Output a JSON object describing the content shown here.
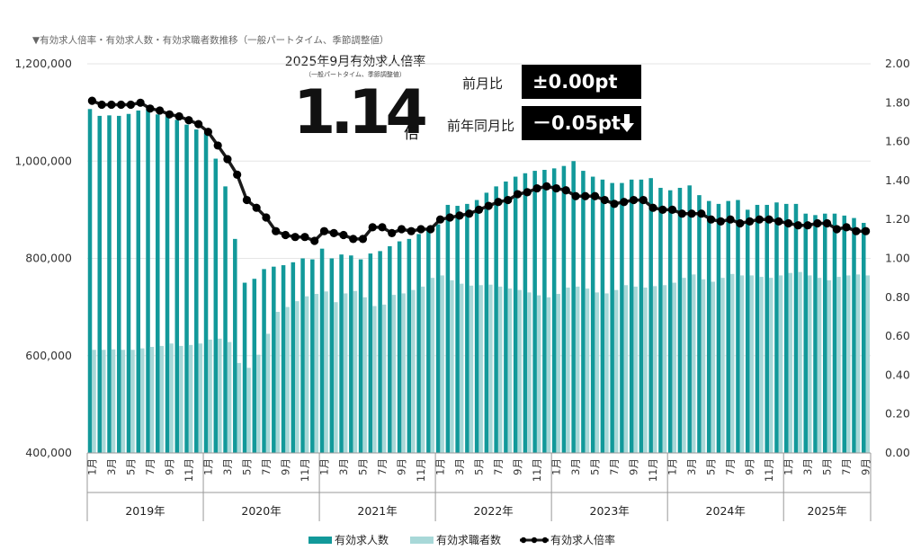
{
  "subtitle": "▼有効求人倍率・有効求人数・有効求職者数推移（一般パートタイム、季節調整値）",
  "headline": {
    "heading": "2025年9月有効求人倍率",
    "note": "（一般パートタイム、季節調整値）",
    "value": "1.14",
    "unit": "倍",
    "mom_label": "前月比",
    "mom_value": "±0.00pt",
    "yoy_label": "前年同月比",
    "yoy_value": "－0.05pt",
    "yoy_icon": "arrow-down-icon"
  },
  "colors": {
    "openings": "#12999a",
    "seekers": "#a8d8d8",
    "ratio": "#000000",
    "ratio_line": "#1a1a1a"
  },
  "chart_data": {
    "type": "bar",
    "left_axis": {
      "min": 400000,
      "max": 1200000,
      "step": 200000,
      "ticks": [
        "400,000",
        "600,000",
        "800,000",
        "1,000,000",
        "1,200,000"
      ]
    },
    "right_axis": {
      "min": 0,
      "max": 2.0,
      "step": 0.2,
      "ticks": [
        "0.00",
        "0.20",
        "0.40",
        "0.60",
        "0.80",
        "1.00",
        "1.20",
        "1.40",
        "1.60",
        "1.80",
        "2.00"
      ]
    },
    "month_tick_labels": [
      "1月",
      "3月",
      "5月",
      "7月",
      "9月",
      "11月"
    ],
    "years": [
      "2019年",
      "2020年",
      "2021年",
      "2022年",
      "2023年",
      "2024年",
      "2025年"
    ],
    "months_per_year": [
      12,
      12,
      12,
      12,
      12,
      12,
      9
    ],
    "legend": [
      "有効求人数",
      "有効求職者数",
      "有効求人倍率"
    ],
    "openings": [
      1107000,
      1093000,
      1094000,
      1093000,
      1097000,
      1104000,
      1107000,
      1096000,
      1092000,
      1085000,
      1075000,
      1065000,
      1058000,
      1005000,
      948000,
      840000,
      750000,
      758000,
      778000,
      783000,
      786000,
      792000,
      800000,
      798000,
      820000,
      800000,
      808000,
      806000,
      798000,
      810000,
      815000,
      825000,
      835000,
      840000,
      850000,
      860000,
      870000,
      910000,
      908000,
      912000,
      920000,
      935000,
      948000,
      958000,
      968000,
      975000,
      980000,
      982000,
      985000,
      990000,
      1000000,
      980000,
      968000,
      962000,
      955000,
      955000,
      962000,
      962000,
      965000,
      945000,
      940000,
      945000,
      950000,
      930000,
      918000,
      912000,
      918000,
      920000,
      900000,
      910000,
      910000,
      915000,
      912000,
      912000,
      892000,
      889000,
      892000,
      892000,
      888000,
      883000,
      873000
    ],
    "seekers": [
      612000,
      612000,
      613000,
      612000,
      612000,
      615000,
      618000,
      620000,
      625000,
      620000,
      622000,
      625000,
      633000,
      635000,
      628000,
      585000,
      575000,
      602000,
      645000,
      690000,
      700000,
      712000,
      722000,
      727000,
      732000,
      710000,
      728000,
      733000,
      720000,
      702000,
      705000,
      725000,
      728000,
      735000,
      742000,
      760000,
      765000,
      755000,
      748000,
      744000,
      745000,
      746000,
      742000,
      738000,
      735000,
      730000,
      724000,
      720000,
      727000,
      740000,
      742000,
      738000,
      730000,
      728000,
      735000,
      745000,
      742000,
      740000,
      743000,
      745000,
      750000,
      760000,
      767000,
      757000,
      752000,
      760000,
      768000,
      765000,
      765000,
      762000,
      760000,
      765000,
      770000,
      772000,
      765000,
      760000,
      755000,
      762000,
      765000,
      767000,
      765000
    ],
    "ratio": [
      1.81,
      1.79,
      1.79,
      1.79,
      1.79,
      1.8,
      1.77,
      1.76,
      1.74,
      1.73,
      1.71,
      1.69,
      1.65,
      1.58,
      1.51,
      1.43,
      1.3,
      1.26,
      1.21,
      1.14,
      1.12,
      1.11,
      1.11,
      1.09,
      1.14,
      1.13,
      1.12,
      1.1,
      1.1,
      1.16,
      1.16,
      1.13,
      1.15,
      1.14,
      1.15,
      1.15,
      1.2,
      1.21,
      1.22,
      1.23,
      1.25,
      1.27,
      1.29,
      1.3,
      1.33,
      1.34,
      1.36,
      1.37,
      1.36,
      1.35,
      1.32,
      1.32,
      1.32,
      1.3,
      1.28,
      1.29,
      1.3,
      1.3,
      1.26,
      1.25,
      1.25,
      1.23,
      1.23,
      1.23,
      1.2,
      1.19,
      1.2,
      1.18,
      1.19,
      1.2,
      1.2,
      1.19,
      1.18,
      1.17,
      1.17,
      1.18,
      1.18,
      1.15,
      1.16,
      1.14,
      1.14
    ]
  }
}
